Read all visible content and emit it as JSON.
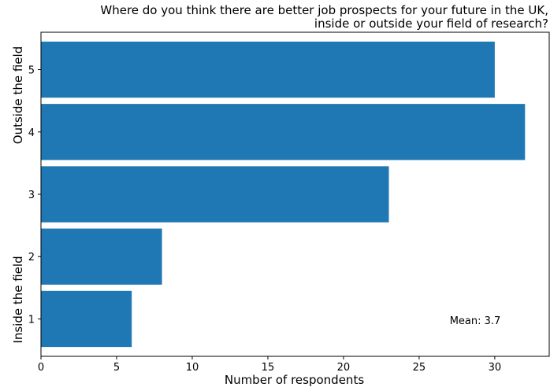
{
  "chart_data": {
    "type": "bar",
    "orientation": "horizontal",
    "title_lines": [
      "Where do you think there are better job prospects for your future in the UK,",
      "inside or outside your field of research?"
    ],
    "xlabel": "Number of respondents",
    "ylabel_high": "Outside the field",
    "ylabel_low": "Inside the field",
    "categories": [
      "1",
      "2",
      "3",
      "4",
      "5"
    ],
    "values": [
      6,
      8,
      23,
      32,
      30
    ],
    "xlim": [
      0,
      33.6
    ],
    "xticks": [
      0,
      5,
      10,
      15,
      20,
      25,
      30
    ],
    "annotation": "Mean: 3.7",
    "bar_color": "#1f77b4",
    "grid": false
  }
}
